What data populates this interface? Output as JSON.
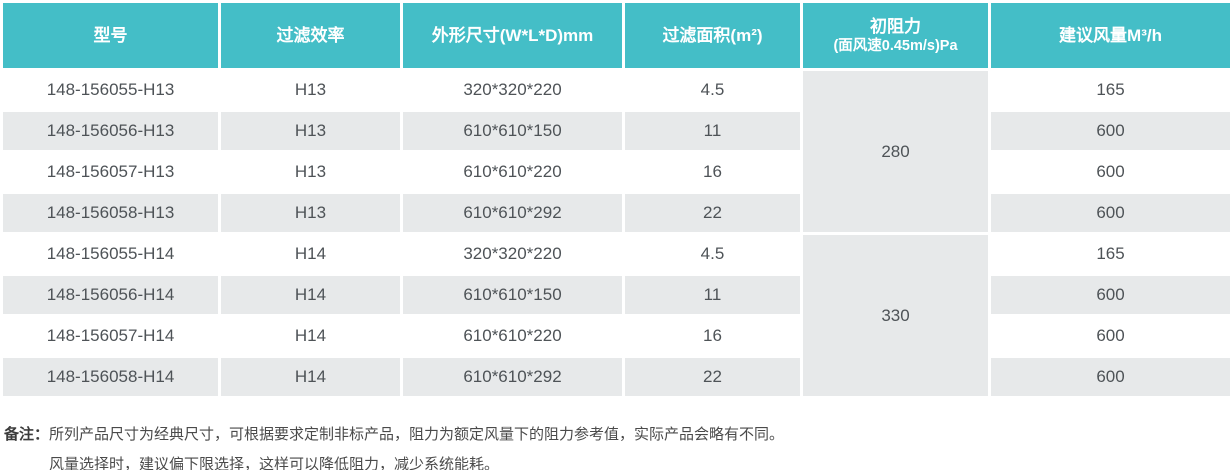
{
  "colors": {
    "header_bg": "#44bec7",
    "header_text": "#ffffff",
    "alt_row_bg": "#e7e9ea",
    "body_text": "#4e5357"
  },
  "table": {
    "columns": [
      {
        "label": "型号"
      },
      {
        "label": "过滤效率"
      },
      {
        "label": "外形尺寸(W*L*D)mm"
      },
      {
        "label": "过滤面积(m²)"
      },
      {
        "label": "初阻力",
        "sublabel": "(面风速0.45m/s)Pa"
      },
      {
        "label": "建议风量M³/h"
      }
    ],
    "groups": [
      {
        "resistance": "280",
        "rows": [
          {
            "model": "148-156055-H13",
            "efficiency": "H13",
            "dimensions": "320*320*220",
            "area": "4.5",
            "airflow": "165"
          },
          {
            "model": "148-156056-H13",
            "efficiency": "H13",
            "dimensions": "610*610*150",
            "area": "11",
            "airflow": "600"
          },
          {
            "model": "148-156057-H13",
            "efficiency": "H13",
            "dimensions": "610*610*220",
            "area": "16",
            "airflow": "600"
          },
          {
            "model": "148-156058-H13",
            "efficiency": "H13",
            "dimensions": "610*610*292",
            "area": "22",
            "airflow": "600"
          }
        ]
      },
      {
        "resistance": "330",
        "rows": [
          {
            "model": "148-156055-H14",
            "efficiency": "H14",
            "dimensions": "320*320*220",
            "area": "4.5",
            "airflow": "165"
          },
          {
            "model": "148-156056-H14",
            "efficiency": "H14",
            "dimensions": "610*610*150",
            "area": "11",
            "airflow": "600"
          },
          {
            "model": "148-156057-H14",
            "efficiency": "H14",
            "dimensions": "610*610*220",
            "area": "16",
            "airflow": "600"
          },
          {
            "model": "148-156058-H14",
            "efficiency": "H14",
            "dimensions": "610*610*292",
            "area": "22",
            "airflow": "600"
          }
        ]
      }
    ]
  },
  "notes": {
    "label": "备注：",
    "line1": "所列产品尺寸为经典尺寸，可根据要求定制非标产品，阻力为额定风量下的阻力参考值，实际产品会略有不同。",
    "line2": "风量选择时，建议偏下限选择，这样可以降低阻力，减少系统能耗。"
  }
}
